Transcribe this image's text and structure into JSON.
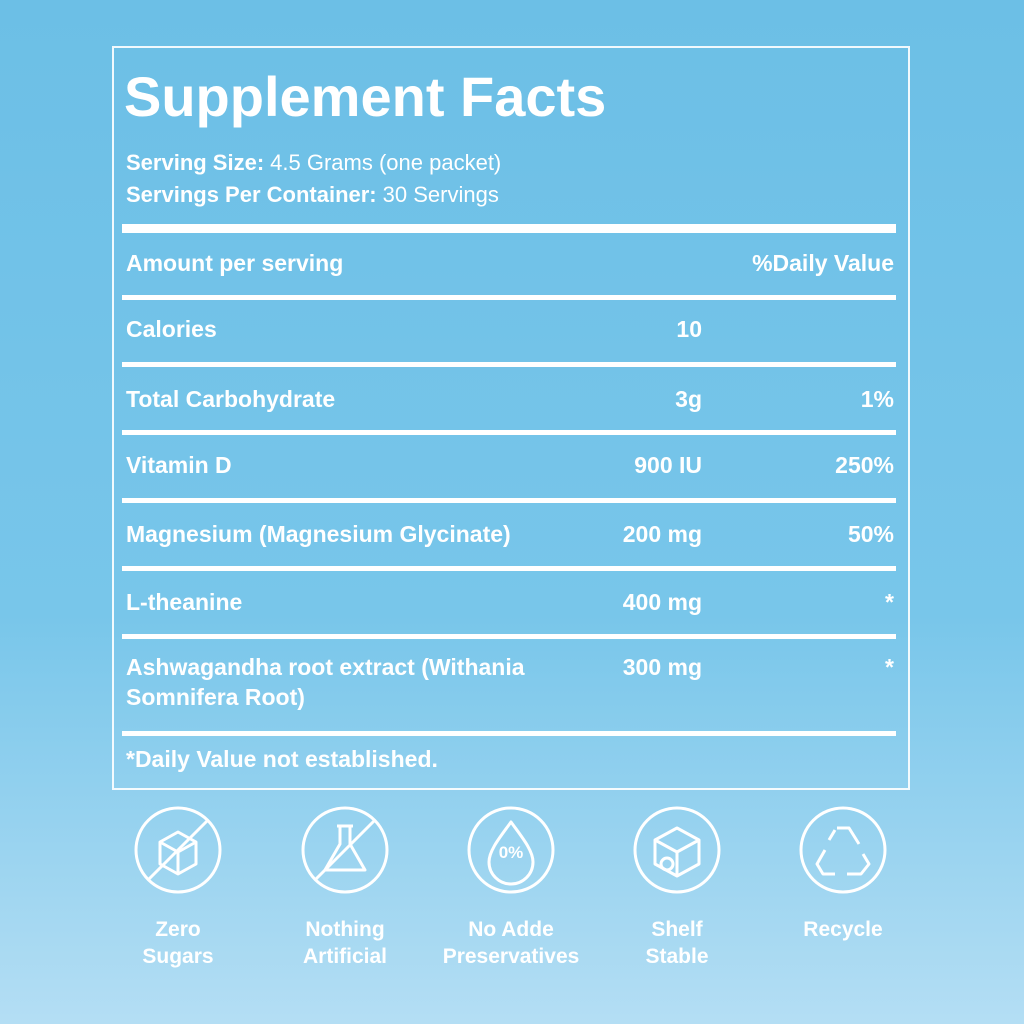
{
  "panel": {
    "title": "Supplement Facts",
    "serving": [
      {
        "label": "Serving Size:",
        "value": "4.5 Grams (one packet)"
      },
      {
        "label": "Servings Per Container:",
        "value": "30 Servings"
      }
    ],
    "table": {
      "header": {
        "name": "Amount per serving",
        "dv": "%Daily Value"
      },
      "rows": [
        {
          "name": "Calories",
          "amount": "10"
        },
        {
          "name": "Total Carbohydrate",
          "amount": "3g",
          "dv": "1%"
        },
        {
          "name": "Vitamin D",
          "amount": "900 IU",
          "dv": "250%"
        },
        {
          "name": "Magnesium (Magnesium Glycinate)",
          "amount": "200 mg",
          "dv": "50%"
        },
        {
          "name": "L-theanine",
          "amount": "400 mg",
          "dv": "*"
        },
        {
          "name": "Ashwagandha  root extract (Withania Somnifera Root)",
          "amount": "300 mg",
          "dv": "*"
        }
      ]
    },
    "footnote": "*Daily Value not established."
  },
  "badges": [
    {
      "lines": [
        "Zero",
        "Sugars"
      ]
    },
    {
      "lines": [
        "Nothing",
        "Artificial"
      ]
    },
    {
      "icon_text": "0%",
      "lines": [
        "No Adde",
        "Preservatives"
      ]
    },
    {
      "lines": [
        "Shelf",
        "Stable"
      ]
    },
    {
      "lines": [
        "Recycle"
      ]
    }
  ]
}
